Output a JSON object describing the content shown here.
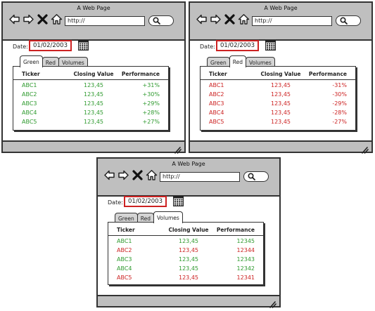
{
  "colors": {
    "green": "#2e9a2e",
    "red": "#cc2222",
    "chrome": "#bfbfbf",
    "highlight": "#cc2222"
  },
  "windows": [
    {
      "title": "A Web Page",
      "url": "http://",
      "date_label": "Date:",
      "date_value": "01/02/2003",
      "tabs": [
        "Green",
        "Red",
        "Volumes"
      ],
      "active_tab": 0,
      "headers": [
        "Ticker",
        "Closing Value",
        "Performance"
      ],
      "rows": [
        {
          "ticker": "ABC1",
          "closing": "123,45",
          "performance": "+31%",
          "color": "green"
        },
        {
          "ticker": "ABC2",
          "closing": "123,45",
          "performance": "+30%",
          "color": "green"
        },
        {
          "ticker": "ABC3",
          "closing": "123,45",
          "performance": "+29%",
          "color": "green"
        },
        {
          "ticker": "ABC4",
          "closing": "123,45",
          "performance": "+28%",
          "color": "green"
        },
        {
          "ticker": "ABC5",
          "closing": "123,45",
          "performance": "+27%",
          "color": "green"
        }
      ]
    },
    {
      "title": "A Web Page",
      "url": "http://",
      "date_label": "Date:",
      "date_value": "01/02/2003",
      "tabs": [
        "Green",
        "Red",
        "Volumes"
      ],
      "active_tab": 1,
      "headers": [
        "Ticker",
        "Closing Value",
        "Performance"
      ],
      "rows": [
        {
          "ticker": "ABC1",
          "closing": "123,45",
          "performance": "-31%",
          "color": "red"
        },
        {
          "ticker": "ABC2",
          "closing": "123,45",
          "performance": "-30%",
          "color": "red"
        },
        {
          "ticker": "ABC3",
          "closing": "123,45",
          "performance": "-29%",
          "color": "red"
        },
        {
          "ticker": "ABC4",
          "closing": "123,45",
          "performance": "-28%",
          "color": "red"
        },
        {
          "ticker": "ABC5",
          "closing": "123,45",
          "performance": "-27%",
          "color": "red"
        }
      ]
    },
    {
      "title": "A Web Page",
      "url": "http://",
      "date_label": "Date:",
      "date_value": "01/02/2003",
      "tabs": [
        "Green",
        "Red",
        "Volumes"
      ],
      "active_tab": 2,
      "headers": [
        "Ticker",
        "Closing Value",
        "Performance"
      ],
      "rows": [
        {
          "ticker": "ABC1",
          "closing": "123,45",
          "performance": "12345",
          "color": "green"
        },
        {
          "ticker": "ABC2",
          "closing": "123,45",
          "performance": "12344",
          "color": "red"
        },
        {
          "ticker": "ABC3",
          "closing": "123,45",
          "performance": "12343",
          "color": "green"
        },
        {
          "ticker": "ABC4",
          "closing": "123,45",
          "performance": "12342",
          "color": "green"
        },
        {
          "ticker": "ABC5",
          "closing": "123,45",
          "performance": "12341",
          "color": "red"
        }
      ]
    }
  ]
}
